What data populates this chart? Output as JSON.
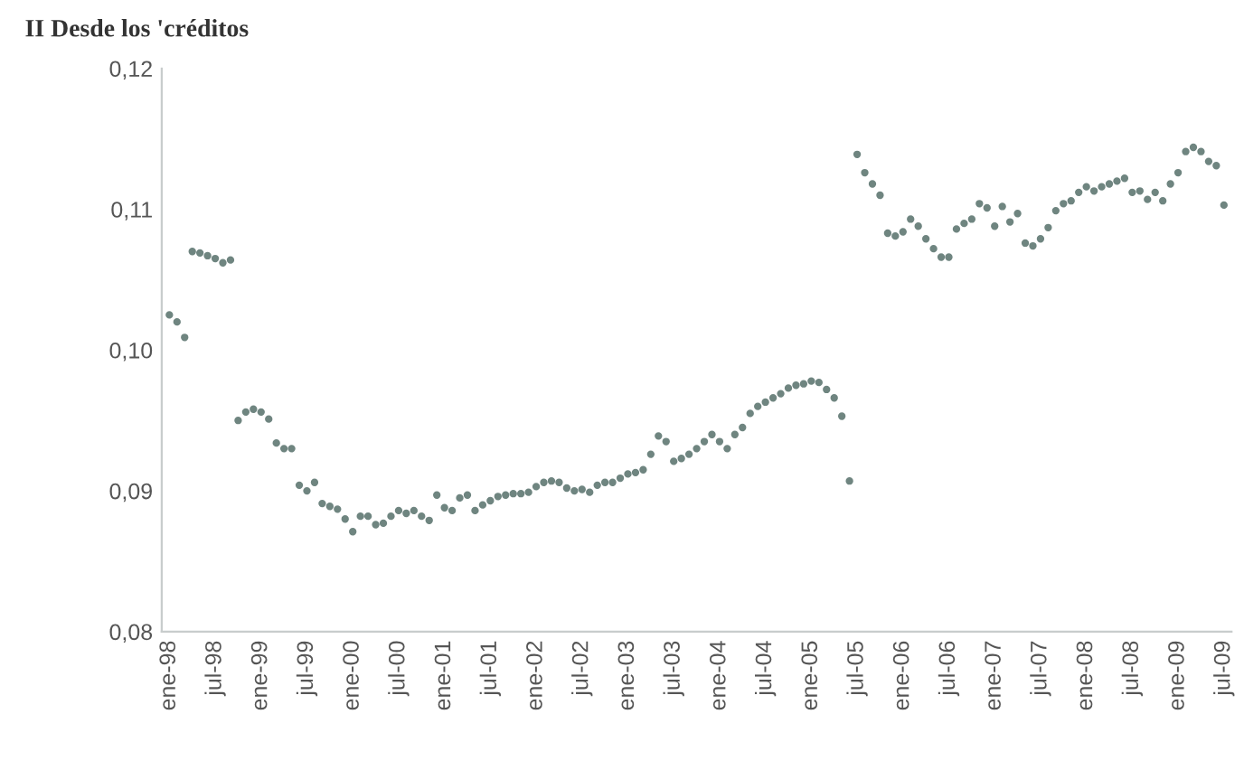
{
  "chart_data": {
    "type": "scatter",
    "title": "II Desde los 'créditos",
    "categories": [
      "ene-98",
      null,
      null,
      null,
      null,
      null,
      "jul-98",
      null,
      null,
      null,
      null,
      null,
      "ene-99",
      null,
      null,
      null,
      null,
      null,
      "jul-99",
      null,
      null,
      null,
      null,
      null,
      "ene-00",
      null,
      null,
      null,
      null,
      null,
      "jul-00",
      null,
      null,
      null,
      null,
      null,
      "ene-01",
      null,
      null,
      null,
      null,
      null,
      "jul-01",
      null,
      null,
      null,
      null,
      null,
      "ene-02",
      null,
      null,
      null,
      null,
      null,
      "jul-02",
      null,
      null,
      null,
      null,
      null,
      "ene-03",
      null,
      null,
      null,
      null,
      null,
      "jul-03",
      null,
      null,
      null,
      null,
      null,
      "ene-04",
      null,
      null,
      null,
      null,
      null,
      "jul-04",
      null,
      null,
      null,
      null,
      null,
      "ene-05",
      null,
      null,
      null,
      null,
      null,
      "jul-05",
      null,
      null,
      null,
      null,
      null,
      "ene-06",
      null,
      null,
      null,
      null,
      null,
      "jul-06",
      null,
      null,
      null,
      null,
      null,
      "ene-07",
      null,
      null,
      null,
      null,
      null,
      "jul-07",
      null,
      null,
      null,
      null,
      null,
      "ene-08",
      null,
      null,
      null,
      null,
      null,
      "jul-08",
      null,
      null,
      null,
      null,
      null,
      "ene-09",
      null,
      null,
      null,
      null,
      null,
      "jul-09"
    ],
    "series": [
      {
        "color": "#6f8580",
        "values": [
          0.1025,
          0.102,
          0.1009,
          0.107,
          0.1069,
          0.1067,
          0.1065,
          0.1062,
          0.1064,
          0.095,
          0.0956,
          0.0958,
          0.0956,
          0.0951,
          0.0934,
          0.093,
          0.093,
          0.0904,
          0.09,
          0.0906,
          0.0891,
          0.0889,
          0.0887,
          0.088,
          0.0871,
          0.0882,
          0.0882,
          0.0876,
          0.0877,
          0.0882,
          0.0886,
          0.0884,
          0.0886,
          0.0882,
          0.0879,
          0.0897,
          0.0888,
          0.0886,
          0.0895,
          0.0897,
          0.0886,
          0.089,
          0.0893,
          0.0896,
          0.0897,
          0.0898,
          0.0898,
          0.0899,
          0.0903,
          0.0906,
          0.0907,
          0.0906,
          0.0902,
          0.09,
          0.0901,
          0.0899,
          0.0904,
          0.0906,
          0.0906,
          0.0909,
          0.0912,
          0.0913,
          0.0915,
          0.0926,
          0.0939,
          0.0935,
          0.0921,
          0.0923,
          0.0926,
          0.093,
          0.0935,
          0.094,
          0.0935,
          0.093,
          0.094,
          0.0945,
          0.0955,
          0.096,
          0.0963,
          0.0966,
          0.0969,
          0.0973,
          0.0975,
          0.0976,
          0.0978,
          0.0977,
          0.0972,
          0.0966,
          0.0953,
          0.0907,
          0.1139,
          0.1126,
          0.1118,
          0.111,
          0.1083,
          0.1081,
          0.1084,
          0.1093,
          0.1088,
          0.1079,
          0.1072,
          0.1066,
          0.1066,
          0.1086,
          0.109,
          0.1093,
          0.1104,
          0.1101,
          0.1088,
          0.1102,
          0.1091,
          0.1097,
          0.1076,
          0.1074,
          0.1079,
          0.1087,
          0.1099,
          0.1104,
          0.1106,
          0.1112,
          0.1116,
          0.1113,
          0.1116,
          0.1118,
          0.112,
          0.1122,
          0.1112,
          0.1113,
          0.1107,
          0.1112,
          0.1106,
          0.1118,
          0.1126,
          0.1141,
          0.1144,
          0.1141,
          0.1134,
          0.1131,
          0.1103
        ]
      }
    ],
    "ylim": [
      0.08,
      0.12
    ],
    "yticks": [
      {
        "value": 0.08,
        "label": "0,08"
      },
      {
        "value": 0.09,
        "label": "0,09"
      },
      {
        "value": 0.1,
        "label": "0,10"
      },
      {
        "value": 0.11,
        "label": "0,11"
      },
      {
        "value": 0.12,
        "label": "0,12"
      }
    ],
    "marker": "circle",
    "grid": false,
    "legend": false
  }
}
